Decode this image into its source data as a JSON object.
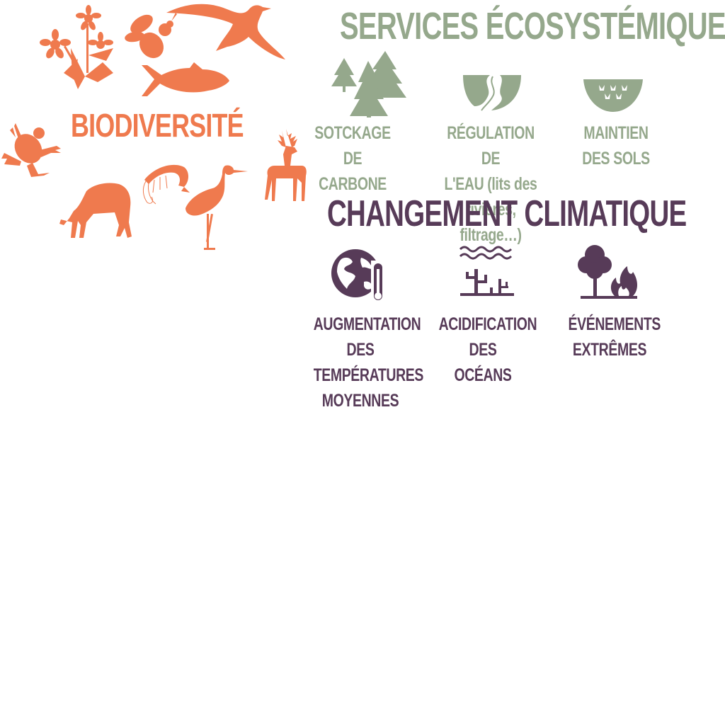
{
  "colors": {
    "biodiversity": "#ef7a4e",
    "services": "#95a88c",
    "climate": "#573b58",
    "background": "#ffffff"
  },
  "biodiversity": {
    "title": "BIODIVERSITÉ",
    "icons": [
      "flower-icon",
      "bee-icon",
      "bird-icon",
      "tuna-icon",
      "frog-icon",
      "deer-icon",
      "shrimp-icon",
      "wolf-icon",
      "crane-icon"
    ]
  },
  "services": {
    "title": "SERVICES ÉCOSYSTÉMIQUES",
    "items": [
      {
        "icon": "forest-icon",
        "lines": [
          "SOTCKAGE DE",
          "CARBONE"
        ]
      },
      {
        "icon": "river-icon",
        "lines": [
          "RÉGULATION DE",
          "L'EAU (lits des",
          "rivières, filtrage…)"
        ]
      },
      {
        "icon": "soil-icon",
        "lines": [
          "MAINTIEN",
          "DES SOLS"
        ]
      }
    ]
  },
  "climate": {
    "title": "CHANGEMENT CLIMATIQUE",
    "items": [
      {
        "icon": "globe-thermometer-icon",
        "lines": [
          "AUGMENTATION",
          "DES",
          "TEMPÉRATURES",
          "MOYENNES"
        ]
      },
      {
        "icon": "coral-waves-icon",
        "lines": [
          "ACIDIFICATION",
          "DES OCÉANS"
        ]
      },
      {
        "icon": "forest-fire-icon",
        "lines": [
          "ÉVÉNEMENTS",
          "EXTRÊMES"
        ]
      }
    ]
  }
}
